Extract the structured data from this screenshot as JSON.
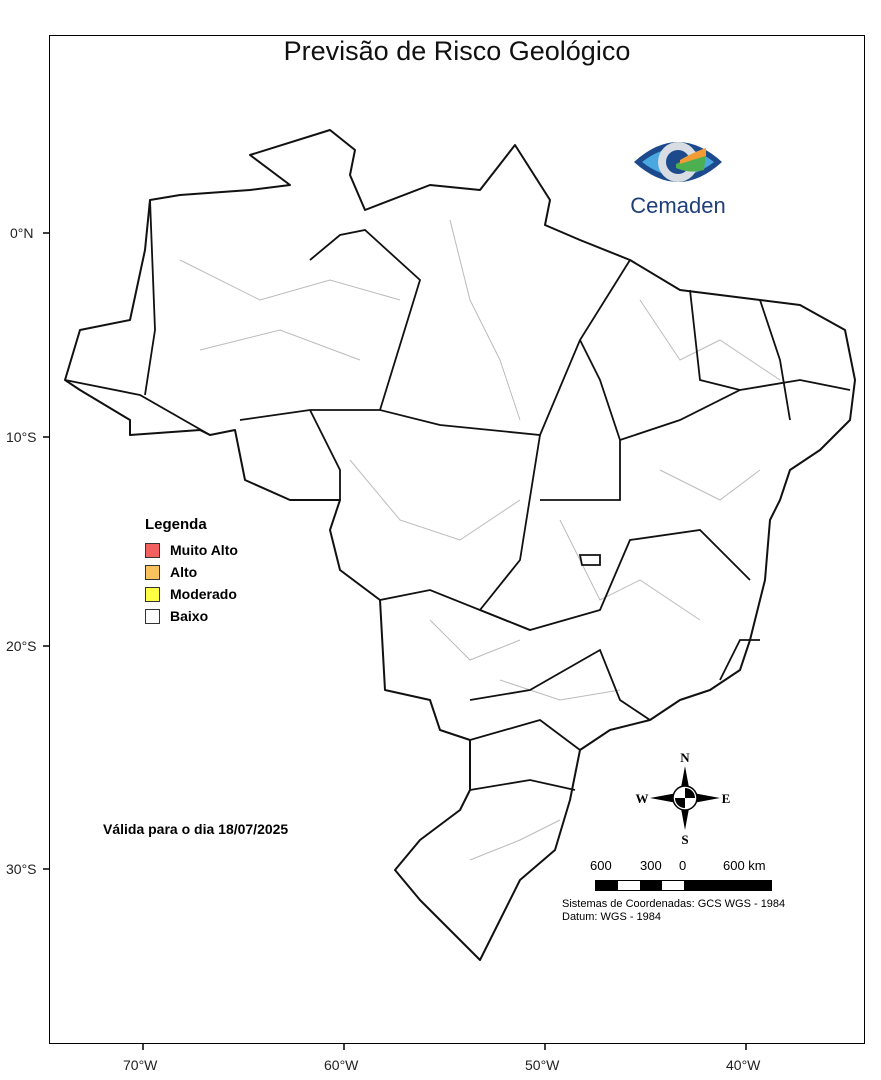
{
  "title": "Previsão de Risco Geológico",
  "axes": {
    "lat_ticks": [
      "0°N",
      "10°S",
      "20°S",
      "30°S"
    ],
    "lon_ticks": [
      "70°W",
      "60°W",
      "50°W",
      "40°W"
    ]
  },
  "legend": {
    "title": "Legenda",
    "items": [
      {
        "label": "Muito Alto",
        "color": "#f26060"
      },
      {
        "label": "Alto",
        "color": "#f9c25e"
      },
      {
        "label": "Moderado",
        "color": "#ffff44"
      },
      {
        "label": "Baixo",
        "color": "#ffffff"
      }
    ]
  },
  "valid_text": "Válida para o dia 18/07/2025",
  "logo": {
    "name": "Cemaden"
  },
  "compass": {
    "n": "N",
    "s": "S",
    "e": "E",
    "w": "W"
  },
  "scale": {
    "labels": [
      "600",
      "300",
      "0",
      "600 km"
    ]
  },
  "coord_system": [
    "Sistemas de Coordenadas: GCS WGS - 1984",
    "Datum: WGS - 1984"
  ],
  "colors": {
    "state_border": "#111111",
    "municipality_border": "#bbbbbb"
  }
}
